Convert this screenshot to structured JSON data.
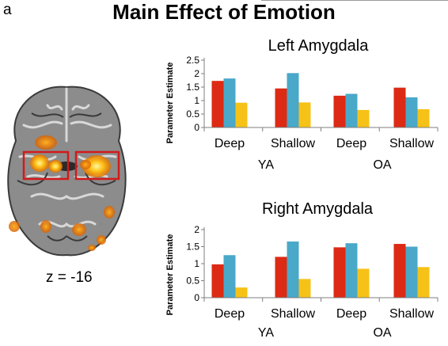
{
  "figure": {
    "panel_label": "a",
    "title": "Main Effect of Emotion",
    "slice_label": "z = -16"
  },
  "colors": {
    "red": "#dd2a14",
    "blue": "#4aa8c9",
    "yellow": "#f7c217",
    "axis": "#7f7f7f"
  },
  "chart_data": [
    {
      "type": "bar",
      "title": "Left Amygdala",
      "ylabel": "Parameter Estimate",
      "ylim": [
        0,
        2.5
      ],
      "yticks": [
        "0",
        "0.5",
        "1",
        "1.5",
        "2",
        "2.5"
      ],
      "categories": [
        "Deep",
        "Shallow",
        "Deep",
        "Shallow"
      ],
      "groups": [
        "YA",
        "OA"
      ],
      "series": [
        {
          "color": "#dd2a14",
          "values": [
            1.73,
            1.45,
            1.18,
            1.48
          ]
        },
        {
          "color": "#4aa8c9",
          "values": [
            1.82,
            2.02,
            1.25,
            1.12
          ]
        },
        {
          "color": "#f7c217",
          "values": [
            0.92,
            0.93,
            0.65,
            0.68
          ]
        }
      ]
    },
    {
      "type": "bar",
      "title": "Right Amygdala",
      "ylabel": "Parameter Estimate",
      "ylim": [
        0,
        2
      ],
      "yticks": [
        "0",
        "0.5",
        "1",
        "1.5",
        "2"
      ],
      "categories": [
        "Deep",
        "Shallow",
        "Deep",
        "Shallow"
      ],
      "groups": [
        "YA",
        "OA"
      ],
      "series": [
        {
          "color": "#dd2a14",
          "values": [
            0.98,
            1.2,
            1.48,
            1.58
          ]
        },
        {
          "color": "#4aa8c9",
          "values": [
            1.25,
            1.65,
            1.6,
            1.5
          ]
        },
        {
          "color": "#f7c217",
          "values": [
            0.3,
            0.55,
            0.85,
            0.9
          ]
        }
      ]
    }
  ]
}
